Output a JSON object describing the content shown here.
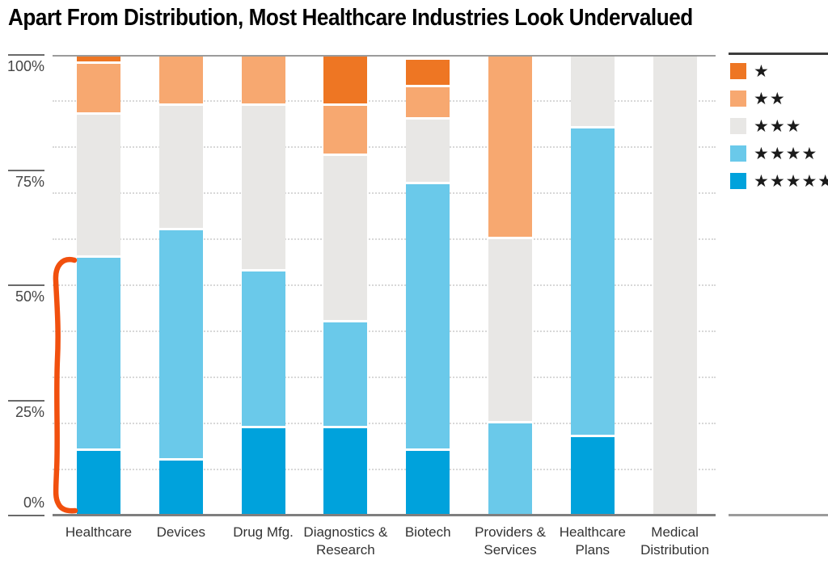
{
  "title": "Apart From Distribution, Most Healthcare Industries Look Undervalued",
  "y_axis": {
    "tick_labels": [
      "100%",
      "75%",
      "50%",
      "25%",
      "0%"
    ],
    "tick_values": [
      100,
      75,
      50,
      25,
      0
    ]
  },
  "legend": {
    "items": [
      {
        "stars": "★",
        "rating": "1-star",
        "color": "#ee7623"
      },
      {
        "stars": "★★",
        "rating": "2-star",
        "color": "#f7a870"
      },
      {
        "stars": "★★★",
        "rating": "3-star",
        "color": "#e8e7e5"
      },
      {
        "stars": "★★★★",
        "rating": "4-star",
        "color": "#6ac9ea"
      },
      {
        "stars": "★★★★★",
        "rating": "5-star",
        "color": "#00a2dc"
      }
    ]
  },
  "chart_data": {
    "type": "bar",
    "subtype": "stacked-percent-column",
    "title": "Apart From Distribution, Most Healthcare Industries Look Undervalued",
    "xlabel": "",
    "ylabel": "",
    "ylim": [
      0,
      100
    ],
    "ytick_percent": [
      0,
      25,
      50,
      75,
      100
    ],
    "minor_grid_percent": [
      10,
      20,
      30,
      40,
      50,
      60,
      70,
      80,
      90
    ],
    "grid": "dotted",
    "legend_position": "top-right",
    "categories": [
      "Healthcare",
      "Devices",
      "Drug Mfg.",
      "Diagnostics & Research",
      "Biotech",
      "Providers & Services",
      "Healthcare Plans",
      "Medical Distribution"
    ],
    "stack_order_bottom_to_top": [
      "5-star",
      "4-star",
      "3-star",
      "2-star",
      "1-star"
    ],
    "series": [
      {
        "name": "★",
        "rating": "1-star",
        "color": "#ee7623",
        "values": [
          2,
          0,
          0,
          11,
          6,
          0,
          0,
          0
        ]
      },
      {
        "name": "★★",
        "rating": "2-star",
        "color": "#f7a870",
        "values": [
          11,
          11,
          11,
          11,
          7,
          40,
          0,
          0
        ]
      },
      {
        "name": "★★★",
        "rating": "3-star",
        "color": "#e8e7e5",
        "values": [
          31,
          27,
          36,
          36,
          14,
          40,
          16,
          100
        ]
      },
      {
        "name": "★★★★",
        "rating": "4-star",
        "color": "#6ac9ea",
        "values": [
          42,
          50,
          34,
          23,
          58,
          20,
          67,
          0
        ]
      },
      {
        "name": "★★★★★",
        "rating": "5-star",
        "color": "#00a2dc",
        "values": [
          14,
          12,
          19,
          19,
          14,
          0,
          17,
          0
        ]
      }
    ],
    "annotation": {
      "type": "hand-drawn-bracket",
      "color": "#f1500e",
      "target": "Healthcare 4-star + 5-star range (0% to ~56%)"
    }
  }
}
